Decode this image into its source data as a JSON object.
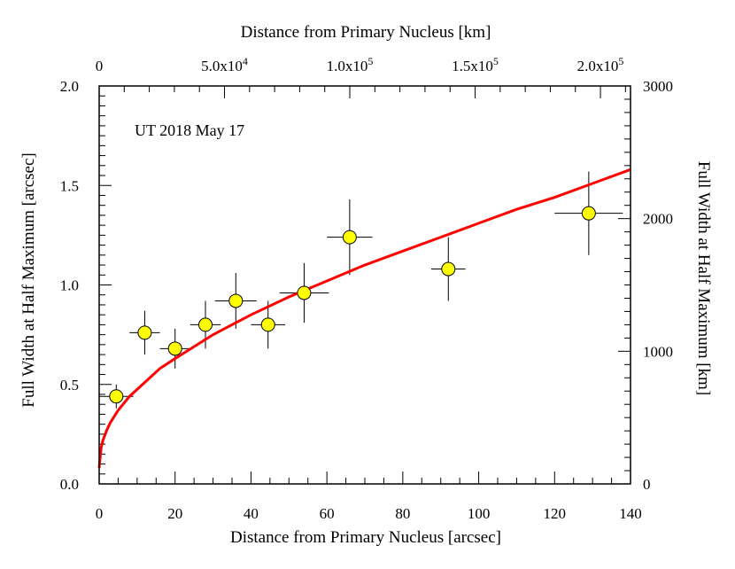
{
  "chart_data": {
    "type": "scatter",
    "annotation": "UT 2018 May 17",
    "x_axis_bottom": {
      "label": "Distance from Primary Nucleus [arcsec]",
      "range": [
        0,
        140
      ],
      "ticks": [
        0,
        20,
        40,
        60,
        80,
        100,
        120,
        140
      ],
      "tick_labels": [
        "0",
        "20",
        "40",
        "60",
        "80",
        "100",
        "120",
        "140"
      ]
    },
    "x_axis_top": {
      "label": "Distance from Primary Nucleus [km]",
      "range": [
        0,
        212000
      ],
      "ticks": [
        0,
        50000,
        100000,
        150000,
        200000
      ],
      "tick_labels": [
        {
          "mantissa": "0",
          "exponent": ""
        },
        {
          "mantissa": "5.0x10",
          "exponent": "4"
        },
        {
          "mantissa": "1.0x10",
          "exponent": "5"
        },
        {
          "mantissa": "1.5x10",
          "exponent": "5"
        },
        {
          "mantissa": "2.0x10",
          "exponent": "5"
        }
      ]
    },
    "y_axis_left": {
      "label": "Full Width at Half Maximum [arcsec]",
      "range": [
        0,
        2.0
      ],
      "ticks": [
        0,
        0.5,
        1.0,
        1.5,
        2.0
      ],
      "tick_labels": [
        "0.0",
        "0.5",
        "1.0",
        "1.5",
        "2.0"
      ]
    },
    "y_axis_right": {
      "label": "Full Width at Half Maximum [km]",
      "range": [
        0,
        3000
      ],
      "ticks": [
        0,
        1000,
        2000,
        3000
      ],
      "tick_labels": [
        "0",
        "1000",
        "2000",
        "3000"
      ]
    },
    "points": [
      {
        "x": 4.5,
        "y": 0.44,
        "xerr": 4.5,
        "yerr": 0.06
      },
      {
        "x": 12,
        "y": 0.76,
        "xerr": 4,
        "yerr": 0.11
      },
      {
        "x": 20,
        "y": 0.68,
        "xerr": 4,
        "yerr": 0.1
      },
      {
        "x": 28,
        "y": 0.8,
        "xerr": 4,
        "yerr": 0.12
      },
      {
        "x": 36,
        "y": 0.92,
        "xerr": 5.5,
        "yerr": 0.14
      },
      {
        "x": 44.5,
        "y": 0.8,
        "xerr": 4.5,
        "yerr": 0.12
      },
      {
        "x": 54,
        "y": 0.96,
        "xerr": 6.5,
        "yerr": 0.15
      },
      {
        "x": 66,
        "y": 1.24,
        "xerr": 6,
        "yerr": 0.19
      },
      {
        "x": 92,
        "y": 1.08,
        "xerr": 4.5,
        "yerr": 0.16
      },
      {
        "x": 129,
        "y": 1.36,
        "xerr": 9,
        "yerr": 0.21
      }
    ],
    "fit": {
      "x": [
        0,
        0.5,
        1,
        2,
        3,
        5,
        8,
        12,
        16,
        20,
        25,
        30,
        40,
        50,
        60,
        70,
        80,
        90,
        100,
        110,
        120,
        130,
        140
      ],
      "y": [
        0.08,
        0.18,
        0.22,
        0.27,
        0.31,
        0.37,
        0.44,
        0.51,
        0.58,
        0.63,
        0.69,
        0.75,
        0.85,
        0.94,
        1.02,
        1.1,
        1.17,
        1.24,
        1.31,
        1.38,
        1.44,
        1.51,
        1.58
      ]
    },
    "colors": {
      "marker_fill": "#ffff00",
      "marker_stroke": "#000000",
      "fit": "#ff0000",
      "axes": "#000000"
    },
    "grid": false,
    "legend": "none"
  }
}
